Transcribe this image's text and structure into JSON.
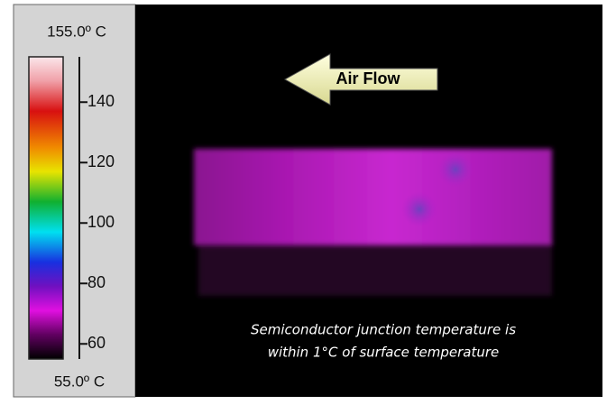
{
  "scale": {
    "top": {
      "value": 155,
      "label": "155.0º C"
    },
    "bottom": {
      "value": 55,
      "label": "55.0º C"
    },
    "ticks": [
      60,
      80,
      100,
      120,
      140
    ]
  },
  "annotation": {
    "arrow_label": "Air Flow"
  },
  "caption": [
    "Semiconductor junction temperature is",
    "within 1°C of surface temperature"
  ]
}
